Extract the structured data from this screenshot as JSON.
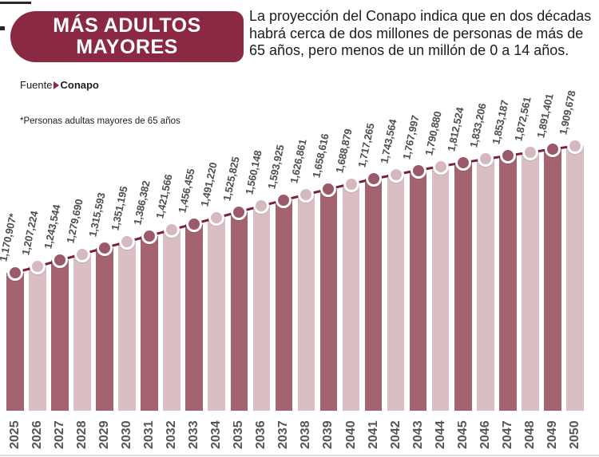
{
  "header": {
    "title_lines": [
      "MÁS ADULTOS",
      "MAYORES"
    ],
    "description": "La proyección del Conapo indica que en dos décadas habrá cerca de dos millones de personas de más de 65 años, pero menos de un millón de 0 a 14 años.",
    "description_lines": [
      "La proyección del Conapo indica que en dos décadas",
      "habrá cerca de dos millones de personas de más de",
      "65 años, pero menos de un millón de 0 a 14 años."
    ]
  },
  "source": {
    "prefix": "Fuente",
    "icon": "chevron-right-icon",
    "name": "Conapo"
  },
  "note": "*Personas adultas mayores de 65 años",
  "colors": {
    "accent": "#8b2942",
    "bar_dark": "#a4636f",
    "bar_light": "#d9bfc4",
    "dot_dark": "#9c5968",
    "dot_light": "#d5b9bf",
    "trend_line": "#7b2038",
    "value_label": "#4e4e50",
    "year_label": "#55565a",
    "text_dark": "#1d1d1b"
  },
  "chart_data": {
    "type": "bar",
    "title": "MÁS ADULTOS MAYORES",
    "subtitle": "Personas adultas mayores de 65 años, proyección Conapo 2025-2050",
    "categories": [
      "2025",
      "2026",
      "2027",
      "2028",
      "2029",
      "2030",
      "2031",
      "2032",
      "2033",
      "2034",
      "2035",
      "2036",
      "2037",
      "2038",
      "2039",
      "2040",
      "2041",
      "2042",
      "2043",
      "2044",
      "2045",
      "2046",
      "2047",
      "2048",
      "2049",
      "2050"
    ],
    "values": [
      1170907,
      1207224,
      1243544,
      1279690,
      1315593,
      1351195,
      1386382,
      1421566,
      1456455,
      1491220,
      1525825,
      1560148,
      1593925,
      1626861,
      1658616,
      1688879,
      1717265,
      1743564,
      1767997,
      1790880,
      1812524,
      1833206,
      1853187,
      1872561,
      1891401,
      1909678
    ],
    "value_labels": [
      "1,170,907*",
      "1,207,224",
      "1,243,544",
      "1,279,690",
      "1,315,593",
      "1,351,195",
      "1,386,382",
      "1,421,566",
      "1,456,455",
      "1,491,220",
      "1,525,825",
      "1,560,148",
      "1,593,925",
      "1,626,861",
      "1,658,616",
      "1,688,879",
      "1,717,265",
      "1,743,564",
      "1,767,997",
      "1,790,880",
      "1,812,524",
      "1,833,206",
      "1,853,187",
      "1,872,561",
      "1,891,401",
      "1,909,678"
    ],
    "xlabel": "",
    "ylabel": "",
    "ylim": [
      0,
      2000000
    ],
    "grid": false,
    "legend": "none",
    "bar_colors_alternate": true,
    "overlay": "line-with-markers-on-bar-tops"
  }
}
